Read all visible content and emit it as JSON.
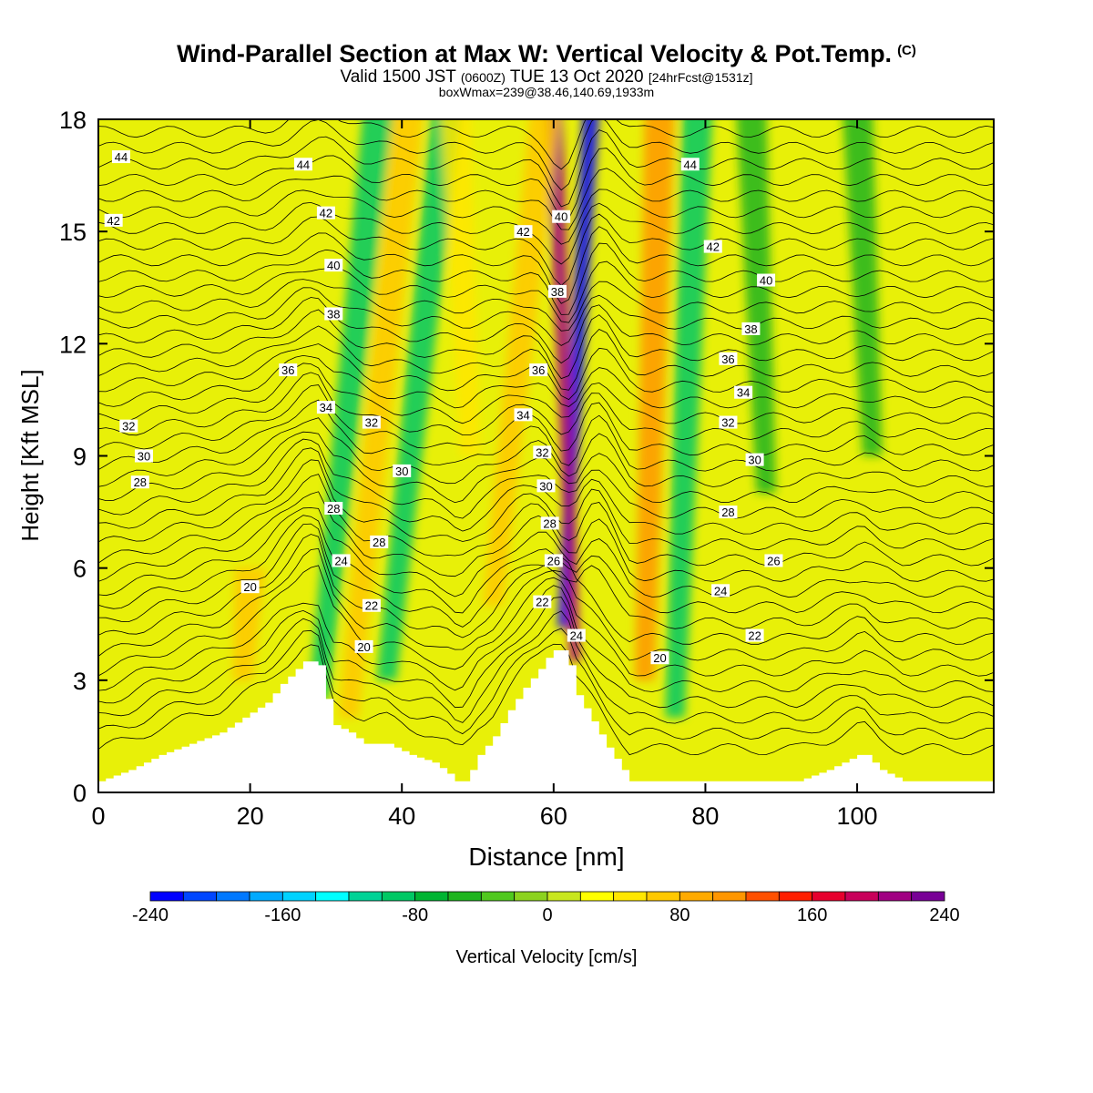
{
  "title": {
    "main": "Wind-Parallel Section at Max W: Vertical Velocity & Pot.Temp.",
    "copyright": "(C)",
    "valid_prefix": "Valid 1500 JST",
    "valid_utc": "(0600Z)",
    "valid_date": "TUE 13 Oct 2020",
    "forecast": "[24hrFcst@1531z]",
    "boxline": "boxWmax=239@38.46,140.69,1933m"
  },
  "chart_data": {
    "type": "heatmap",
    "title": "Wind-Parallel Section at Max W: Vertical Velocity & Pot.Temp.",
    "xlabel": "Distance [nm]",
    "ylabel": "Height [Kft MSL]",
    "xlim": [
      0,
      118
    ],
    "ylim": [
      0,
      18
    ],
    "x_ticks": [
      0,
      20,
      40,
      60,
      80,
      100
    ],
    "y_ticks": [
      0,
      3,
      6,
      9,
      12,
      15,
      18
    ],
    "colorbar": {
      "label": "Vertical Velocity [cm/s]",
      "range": [
        -240,
        240
      ],
      "step": 20,
      "tick_values": [
        -240,
        -160,
        -80,
        0,
        80,
        160,
        240
      ],
      "tick_labels": [
        "-240",
        "-160",
        "-80",
        "0",
        "80",
        "160",
        "240"
      ],
      "colors": [
        "#0000ff",
        "#0046ff",
        "#0078ff",
        "#00aaff",
        "#00d2ff",
        "#00ffff",
        "#00e6c8",
        "#00d296",
        "#00c864",
        "#00b432",
        "#1eb41e",
        "#50c81e",
        "#8cd21e",
        "#c8e61e",
        "#ffff00",
        "#ffe600",
        "#ffc800",
        "#ffaa00",
        "#ff9600",
        "#ff7800",
        "#ff5000",
        "#ff1e00",
        "#e6002d",
        "#c8005a",
        "#a00082",
        "#780096"
      ]
    },
    "terrain": {
      "x": [
        0,
        4,
        8,
        12,
        16,
        19,
        22,
        24,
        26,
        27,
        28,
        29,
        30,
        31,
        33,
        35,
        38,
        41,
        44,
        46,
        47,
        48,
        49,
        50,
        52,
        54,
        56,
        58,
        59,
        60,
        61,
        62,
        63,
        65,
        67,
        70,
        74,
        80,
        85,
        88,
        92,
        96,
        100,
        101,
        103,
        106,
        110,
        118
      ],
      "height_kft": [
        0.3,
        0.6,
        1.0,
        1.3,
        1.6,
        2.0,
        2.4,
        2.9,
        3.3,
        3.5,
        3.5,
        3.4,
        2.5,
        1.8,
        1.6,
        1.3,
        1.3,
        1.0,
        0.8,
        0.5,
        0.3,
        0.3,
        0.6,
        1.0,
        1.5,
        2.2,
        2.8,
        3.3,
        3.6,
        3.8,
        3.8,
        3.4,
        2.6,
        1.9,
        1.2,
        0.3,
        0.3,
        0.3,
        0.3,
        0.3,
        0.3,
        0.6,
        1.0,
        1.0,
        0.6,
        0.3,
        0.3,
        0.3
      ]
    },
    "vertical_velocity_features": [
      {
        "x_bottom": 29,
        "y_bottom": 2.5,
        "x_top": 37,
        "y_top": 18,
        "value": -80
      },
      {
        "x_bottom": 38,
        "y_bottom": 3.0,
        "x_top": 46,
        "y_top": 18,
        "value": -90
      },
      {
        "x_bottom": 33,
        "y_bottom": 2.0,
        "x_top": 41,
        "y_top": 18,
        "value": 70
      },
      {
        "x_bottom": 19,
        "y_bottom": 3.0,
        "x_top": 20,
        "y_top": 5.5,
        "value": 60
      },
      {
        "x_bottom": 61.2,
        "y_bottom": 4.4,
        "x_top": 65,
        "y_top": 18,
        "value": -230
      },
      {
        "x_bottom": 62.8,
        "y_bottom": 3.5,
        "x_top": 60,
        "y_top": 18,
        "value": 210
      },
      {
        "x_bottom": 72,
        "y_bottom": 3.0,
        "x_top": 74,
        "y_top": 18,
        "value": 100
      },
      {
        "x_bottom": 76,
        "y_bottom": 2.0,
        "x_top": 79,
        "y_top": 18,
        "value": -80
      },
      {
        "x_bottom": 52,
        "y_bottom": 5.0,
        "x_top": 59,
        "y_top": 18,
        "value": 60
      },
      {
        "x_bottom": 88,
        "y_bottom": 8.0,
        "x_top": 86,
        "y_top": 18,
        "value": -50
      },
      {
        "x_bottom": 102,
        "y_bottom": 9.0,
        "x_top": 100,
        "y_top": 18,
        "value": -40
      },
      {
        "x_bottom": 49,
        "y_bottom": 9.0,
        "x_top": 47,
        "y_top": 18,
        "value": 50
      }
    ],
    "potential_temperature_labels": [
      {
        "text": "44",
        "x": 3,
        "y": 17.0
      },
      {
        "text": "42",
        "x": 2,
        "y": 15.3
      },
      {
        "text": "32",
        "x": 4,
        "y": 9.8
      },
      {
        "text": "30",
        "x": 6,
        "y": 9.0
      },
      {
        "text": "28",
        "x": 5.5,
        "y": 8.3
      },
      {
        "text": "44",
        "x": 27,
        "y": 16.8
      },
      {
        "text": "42",
        "x": 30,
        "y": 15.5
      },
      {
        "text": "40",
        "x": 31,
        "y": 14.1
      },
      {
        "text": "38",
        "x": 31,
        "y": 12.8
      },
      {
        "text": "36",
        "x": 25,
        "y": 11.3
      },
      {
        "text": "34",
        "x": 30,
        "y": 10.3
      },
      {
        "text": "32",
        "x": 36,
        "y": 9.9
      },
      {
        "text": "30",
        "x": 40,
        "y": 8.6
      },
      {
        "text": "28",
        "x": 31,
        "y": 7.6
      },
      {
        "text": "28",
        "x": 37,
        "y": 6.7
      },
      {
        "text": "24",
        "x": 32,
        "y": 6.2
      },
      {
        "text": "20",
        "x": 20,
        "y": 5.5
      },
      {
        "text": "22",
        "x": 36,
        "y": 5.0
      },
      {
        "text": "20",
        "x": 35,
        "y": 3.9
      },
      {
        "text": "42",
        "x": 56,
        "y": 15.0
      },
      {
        "text": "40",
        "x": 61,
        "y": 15.4
      },
      {
        "text": "38",
        "x": 60.5,
        "y": 13.4
      },
      {
        "text": "36",
        "x": 58,
        "y": 11.3
      },
      {
        "text": "34",
        "x": 56,
        "y": 10.1
      },
      {
        "text": "32",
        "x": 58.5,
        "y": 9.1
      },
      {
        "text": "30",
        "x": 59,
        "y": 8.2
      },
      {
        "text": "28",
        "x": 59.5,
        "y": 7.2
      },
      {
        "text": "26",
        "x": 60,
        "y": 6.2
      },
      {
        "text": "22",
        "x": 58.5,
        "y": 5.1
      },
      {
        "text": "24",
        "x": 63,
        "y": 4.2
      },
      {
        "text": "20",
        "x": 74,
        "y": 3.6
      },
      {
        "text": "44",
        "x": 78,
        "y": 16.8
      },
      {
        "text": "42",
        "x": 81,
        "y": 14.6
      },
      {
        "text": "40",
        "x": 88,
        "y": 13.7
      },
      {
        "text": "38",
        "x": 86,
        "y": 12.4
      },
      {
        "text": "36",
        "x": 83,
        "y": 11.6
      },
      {
        "text": "34",
        "x": 85,
        "y": 10.7
      },
      {
        "text": "32",
        "x": 83,
        "y": 9.9
      },
      {
        "text": "30",
        "x": 86.5,
        "y": 8.9
      },
      {
        "text": "28",
        "x": 83,
        "y": 7.5
      },
      {
        "text": "26",
        "x": 89,
        "y": 6.2
      },
      {
        "text": "24",
        "x": 82,
        "y": 5.4
      },
      {
        "text": "22",
        "x": 86.5,
        "y": 4.2
      }
    ]
  }
}
